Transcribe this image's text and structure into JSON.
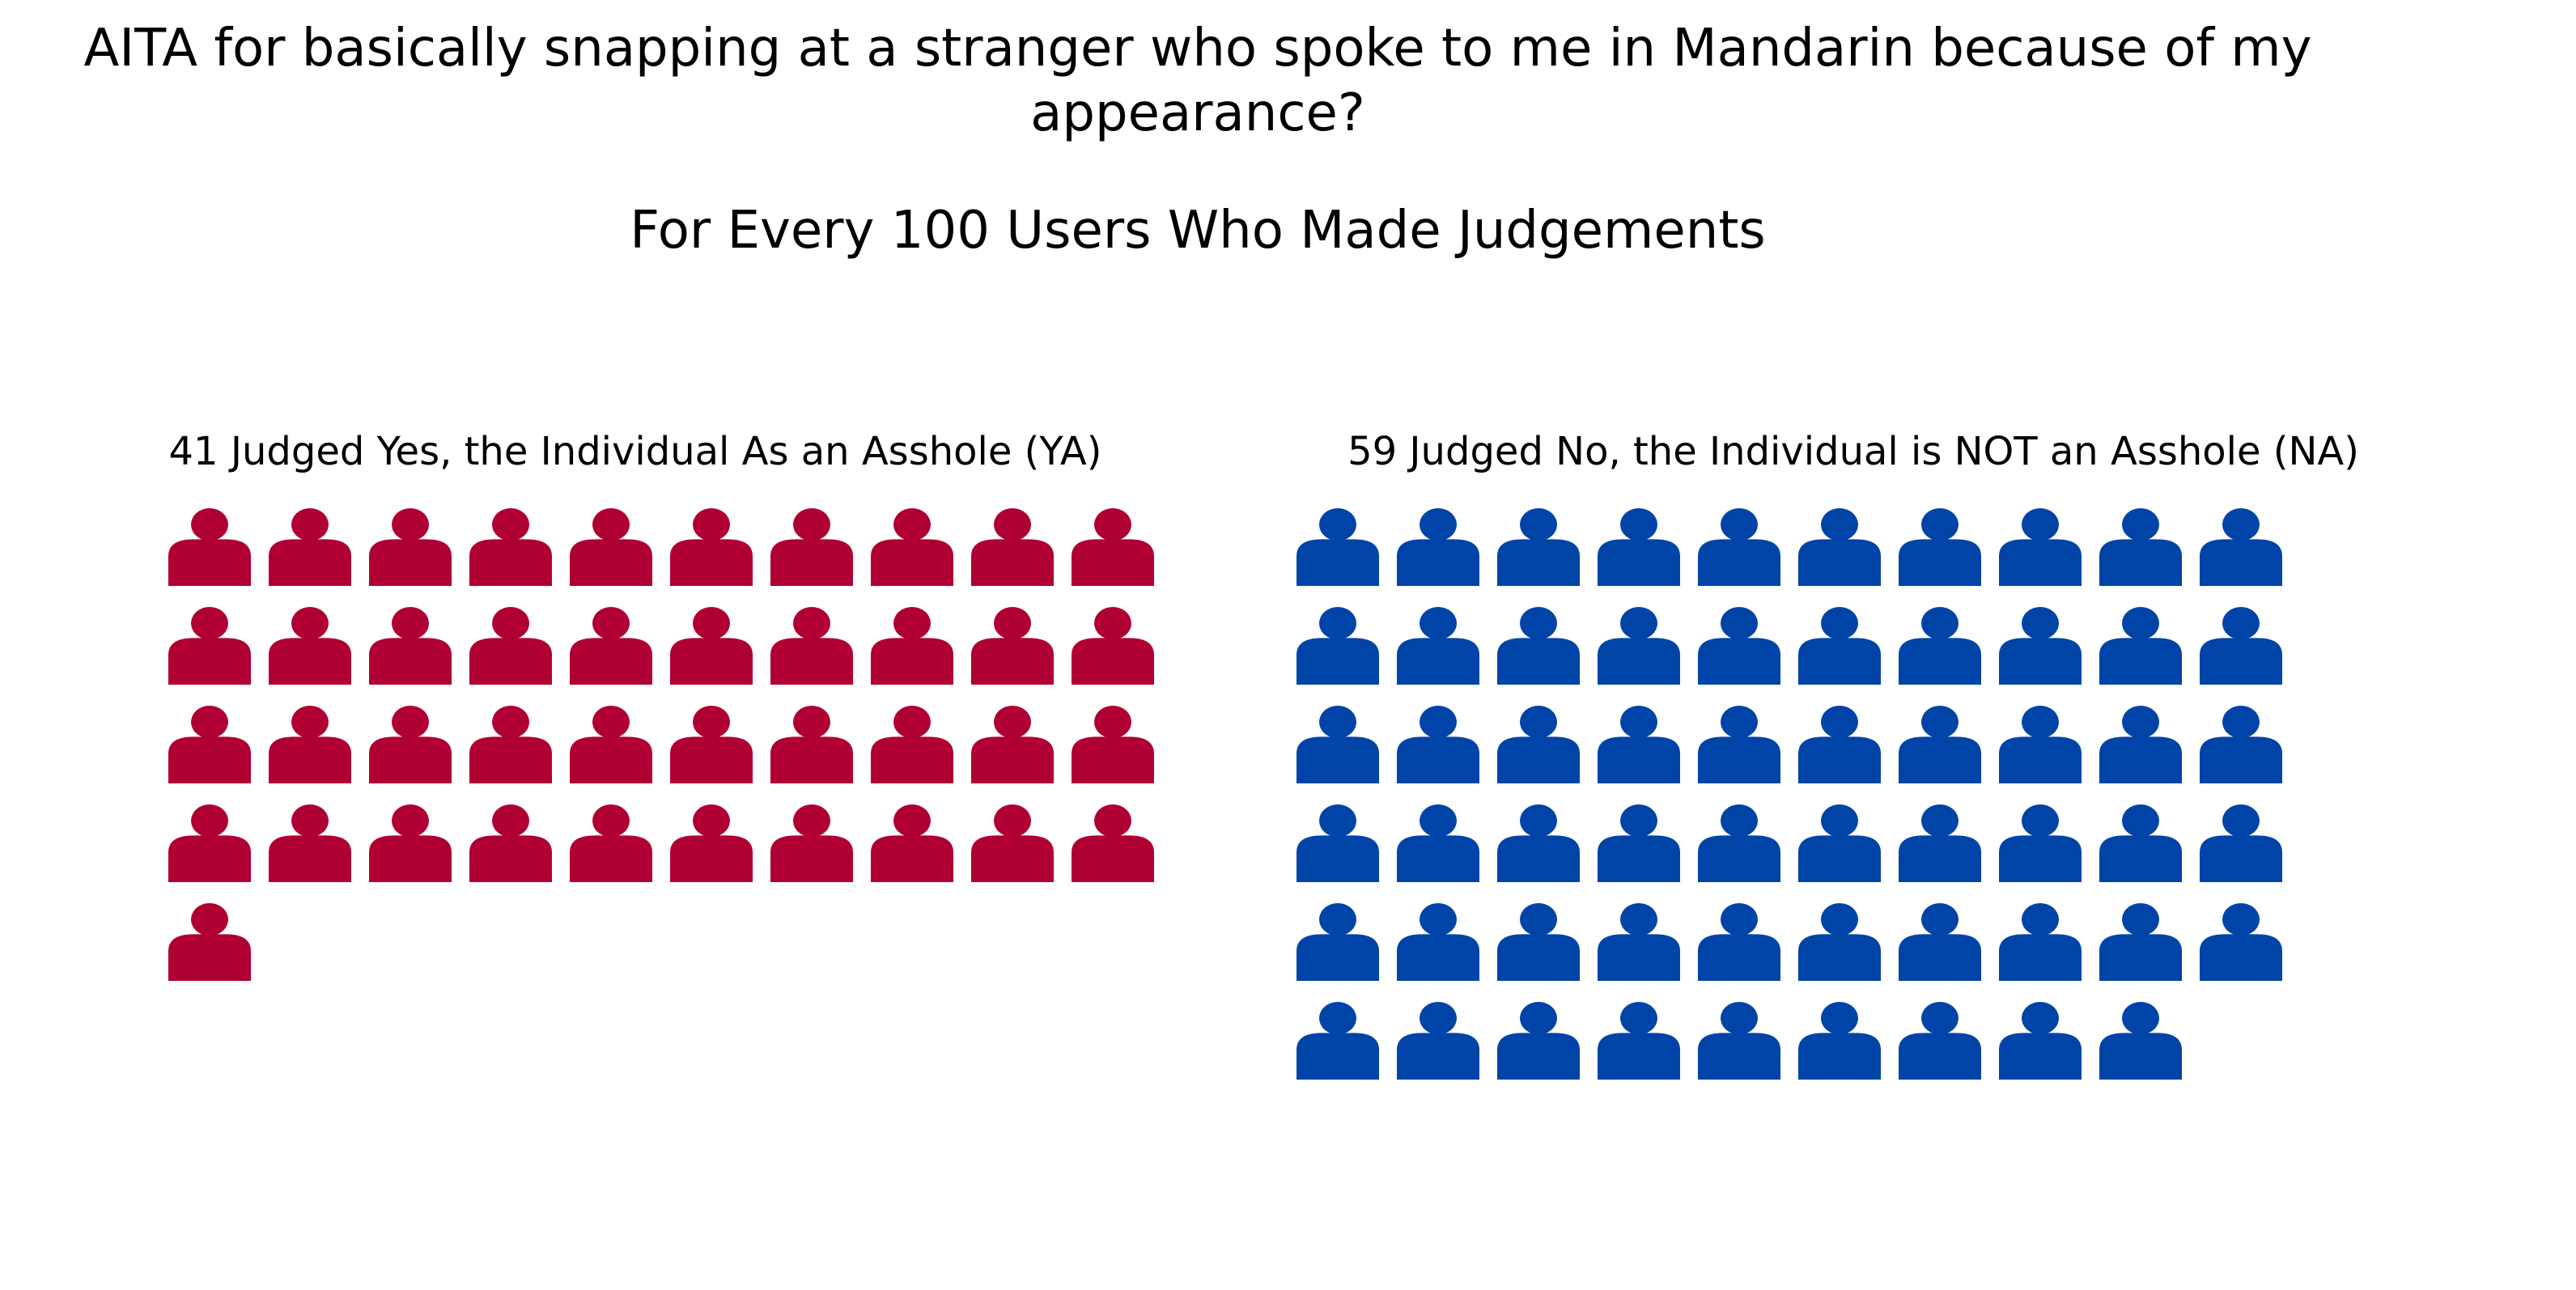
{
  "title": "AITA for basically snapping at a stranger who spoke to me in Mandarin because of my appearance?",
  "subtitle": "For Every 100 Users Who Made Judgements",
  "chart_data": {
    "type": "pictogram",
    "icon": "person-icon",
    "total": 100,
    "columns_per_row": 10,
    "panels": [
      {
        "key": "YA",
        "label": "41 Judged Yes, the Individual As an Asshole (YA)",
        "count": 41,
        "color": "#B00033"
      },
      {
        "key": "NA",
        "label": "59 Judged No, the Individual is NOT an Asshole (NA)",
        "count": 59,
        "color": "#0044A8"
      }
    ]
  }
}
